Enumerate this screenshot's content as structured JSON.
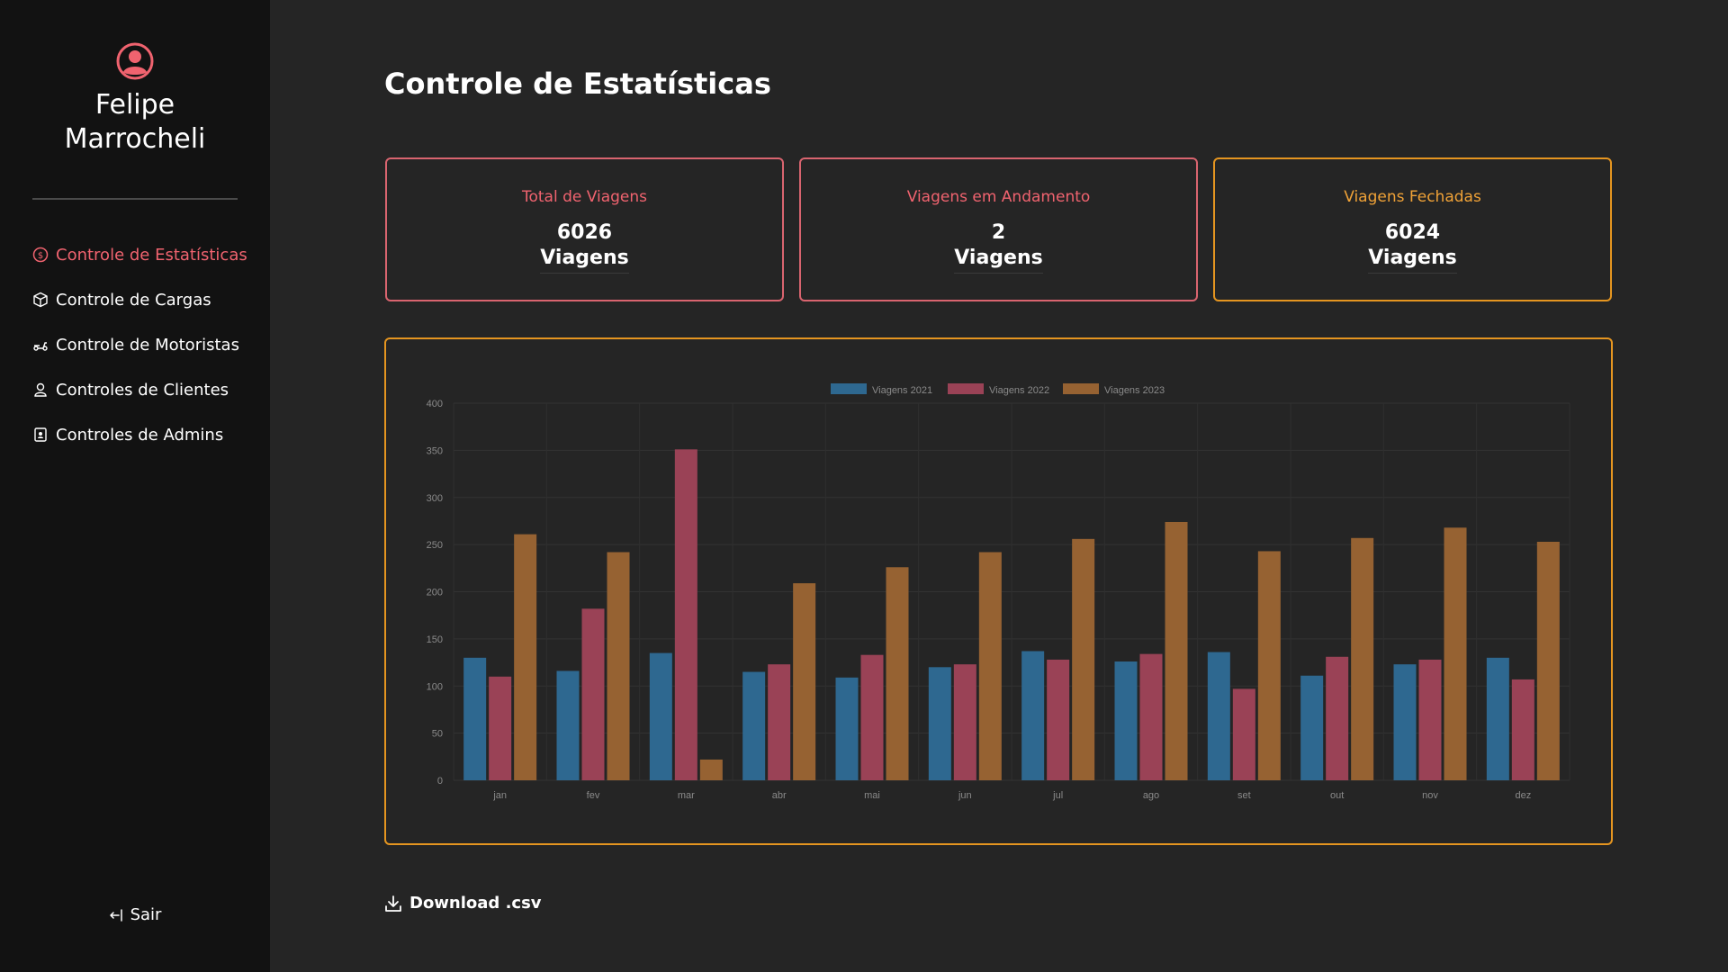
{
  "sidebar": {
    "user_name_line1": "Felipe",
    "user_name_line2": "Marrocheli",
    "items": [
      {
        "label": "Controle de Estatísticas",
        "icon": "dollar-circle-icon",
        "active": true
      },
      {
        "label": "Controle de Cargas",
        "icon": "box-icon",
        "active": false
      },
      {
        "label": "Controle de Motoristas",
        "icon": "scooter-icon",
        "active": false
      },
      {
        "label": "Controles de Clientes",
        "icon": "user-icon",
        "active": false
      },
      {
        "label": "Controles de Admins",
        "icon": "admin-badge-icon",
        "active": false
      }
    ],
    "logout_label": "Sair"
  },
  "page": {
    "title": "Controle de Estatísticas",
    "download_label": "Download .csv"
  },
  "cards": [
    {
      "label": "Total de Viagens",
      "value": "6026",
      "unit": "Viagens"
    },
    {
      "label": "Viagens em Andamento",
      "value": "2",
      "unit": "Viagens"
    },
    {
      "label": "Viagens Fechadas",
      "value": "6024",
      "unit": "Viagens"
    }
  ],
  "colors": {
    "accent_red": "#f0636f",
    "accent_orange": "#e59520",
    "series_2021": "#2e6890",
    "series_2022": "#9a4256",
    "series_2023": "#966232"
  },
  "chart_data": {
    "type": "bar",
    "categories": [
      "jan",
      "fev",
      "mar",
      "abr",
      "mai",
      "jun",
      "jul",
      "ago",
      "set",
      "out",
      "nov",
      "dez"
    ],
    "series": [
      {
        "name": "Viagens 2021",
        "values": [
          130,
          116,
          135,
          115,
          109,
          120,
          137,
          126,
          136,
          111,
          123,
          130
        ]
      },
      {
        "name": "Viagens 2022",
        "values": [
          110,
          182,
          351,
          123,
          133,
          123,
          128,
          134,
          97,
          131,
          128,
          107
        ]
      },
      {
        "name": "Viagens 2023",
        "values": [
          261,
          242,
          22,
          209,
          226,
          242,
          256,
          274,
          243,
          257,
          268,
          253
        ]
      }
    ],
    "ylim": [
      0,
      400
    ],
    "yticks": [
      0,
      50,
      100,
      150,
      200,
      250,
      300,
      350,
      400
    ],
    "legend": "top",
    "grid": true
  }
}
